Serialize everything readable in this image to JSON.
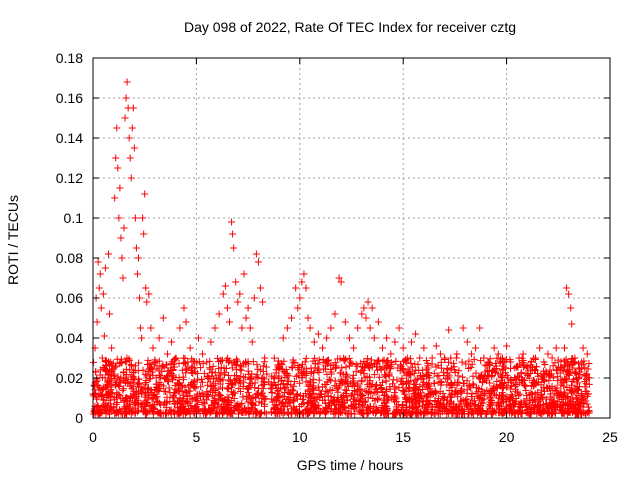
{
  "colors": {
    "marker": "#ff0000",
    "grid": "#a0a0a0",
    "frame": "#000000"
  },
  "chart_data": {
    "type": "scatter",
    "title": "Day 098 of 2022, Rate Of TEC Index for receiver cztg",
    "xlabel": "GPS time / hours",
    "ylabel": "ROTI / TECUs",
    "xlim": [
      0,
      25
    ],
    "ylim": [
      0,
      0.18
    ],
    "xticks": [
      0,
      5,
      10,
      15,
      20,
      25
    ],
    "xtick_labels": [
      "0",
      "5",
      "10",
      "15",
      "20",
      "25"
    ],
    "yticks": [
      0,
      0.02,
      0.04,
      0.06,
      0.08,
      0.1,
      0.12,
      0.14,
      0.16,
      0.18
    ],
    "ytick_labels": [
      "0",
      "0.02",
      "0.04",
      "0.06",
      "0.08",
      "0.1",
      "0.12",
      "0.14",
      "0.16",
      "0.18"
    ],
    "grid": true,
    "marker": "+",
    "series": [
      {
        "name": "ROTI",
        "points": [
          [
            0.0,
            0.012
          ],
          [
            0.1,
            0.035
          ],
          [
            0.15,
            0.06
          ],
          [
            0.2,
            0.048
          ],
          [
            0.25,
            0.078
          ],
          [
            0.3,
            0.065
          ],
          [
            0.35,
            0.072
          ],
          [
            0.4,
            0.055
          ],
          [
            0.45,
            0.03
          ],
          [
            0.5,
            0.062
          ],
          [
            0.55,
            0.041
          ],
          [
            0.6,
            0.075
          ],
          [
            0.65,
            0.028
          ],
          [
            0.7,
            0.018
          ],
          [
            0.75,
            0.082
          ],
          [
            0.8,
            0.052
          ],
          [
            0.9,
            0.035
          ],
          [
            1.0,
            0.022
          ],
          [
            1.05,
            0.11
          ],
          [
            1.1,
            0.13
          ],
          [
            1.15,
            0.145
          ],
          [
            1.2,
            0.125
          ],
          [
            1.25,
            0.1
          ],
          [
            1.3,
            0.115
          ],
          [
            1.35,
            0.09
          ],
          [
            1.4,
            0.08
          ],
          [
            1.45,
            0.07
          ],
          [
            1.5,
            0.095
          ],
          [
            1.55,
            0.15
          ],
          [
            1.6,
            0.16
          ],
          [
            1.65,
            0.168
          ],
          [
            1.7,
            0.155
          ],
          [
            1.75,
            0.14
          ],
          [
            1.8,
            0.13
          ],
          [
            1.85,
            0.12
          ],
          [
            1.9,
            0.145
          ],
          [
            1.95,
            0.155
          ],
          [
            2.0,
            0.135
          ],
          [
            2.05,
            0.1
          ],
          [
            2.1,
            0.085
          ],
          [
            2.15,
            0.072
          ],
          [
            2.2,
            0.08
          ],
          [
            2.25,
            0.06
          ],
          [
            2.3,
            0.045
          ],
          [
            2.35,
            0.04
          ],
          [
            2.4,
            0.1
          ],
          [
            2.45,
            0.092
          ],
          [
            2.5,
            0.112
          ],
          [
            2.55,
            0.065
          ],
          [
            2.6,
            0.058
          ],
          [
            2.7,
            0.062
          ],
          [
            2.8,
            0.045
          ],
          [
            2.9,
            0.035
          ],
          [
            3.0,
            0.028
          ],
          [
            3.2,
            0.04
          ],
          [
            3.4,
            0.05
          ],
          [
            3.6,
            0.032
          ],
          [
            3.8,
            0.038
          ],
          [
            4.0,
            0.03
          ],
          [
            4.2,
            0.045
          ],
          [
            4.4,
            0.055
          ],
          [
            4.5,
            0.048
          ],
          [
            4.7,
            0.035
          ],
          [
            4.9,
            0.025
          ],
          [
            5.1,
            0.04
          ],
          [
            5.3,
            0.032
          ],
          [
            5.5,
            0.028
          ],
          [
            5.7,
            0.038
          ],
          [
            5.9,
            0.045
          ],
          [
            6.1,
            0.052
          ],
          [
            6.3,
            0.062
          ],
          [
            6.4,
            0.066
          ],
          [
            6.5,
            0.055
          ],
          [
            6.6,
            0.048
          ],
          [
            6.7,
            0.098
          ],
          [
            6.75,
            0.092
          ],
          [
            6.8,
            0.085
          ],
          [
            6.9,
            0.068
          ],
          [
            7.0,
            0.058
          ],
          [
            7.1,
            0.062
          ],
          [
            7.2,
            0.045
          ],
          [
            7.3,
            0.072
          ],
          [
            7.4,
            0.05
          ],
          [
            7.5,
            0.055
          ],
          [
            7.6,
            0.045
          ],
          [
            7.7,
            0.038
          ],
          [
            7.8,
            0.06
          ],
          [
            7.9,
            0.082
          ],
          [
            8.0,
            0.078
          ],
          [
            8.1,
            0.065
          ],
          [
            8.2,
            0.058
          ],
          [
            8.3,
            0.03
          ],
          [
            8.4,
            0.022
          ],
          [
            8.5,
            0.018
          ],
          [
            9.0,
            0.025
          ],
          [
            9.2,
            0.04
          ],
          [
            9.4,
            0.045
          ],
          [
            9.6,
            0.05
          ],
          [
            9.8,
            0.065
          ],
          [
            9.9,
            0.055
          ],
          [
            10.0,
            0.06
          ],
          [
            10.1,
            0.068
          ],
          [
            10.2,
            0.072
          ],
          [
            10.3,
            0.065
          ],
          [
            10.4,
            0.05
          ],
          [
            10.5,
            0.045
          ],
          [
            10.7,
            0.038
          ],
          [
            10.9,
            0.042
          ],
          [
            11.1,
            0.035
          ],
          [
            11.3,
            0.04
          ],
          [
            11.5,
            0.045
          ],
          [
            11.7,
            0.052
          ],
          [
            11.9,
            0.07
          ],
          [
            12.0,
            0.068
          ],
          [
            12.2,
            0.048
          ],
          [
            12.4,
            0.04
          ],
          [
            12.6,
            0.035
          ],
          [
            12.8,
            0.045
          ],
          [
            13.0,
            0.052
          ],
          [
            13.1,
            0.055
          ],
          [
            13.2,
            0.05
          ],
          [
            13.3,
            0.058
          ],
          [
            13.4,
            0.045
          ],
          [
            13.5,
            0.055
          ],
          [
            13.6,
            0.04
          ],
          [
            13.8,
            0.048
          ],
          [
            14.0,
            0.035
          ],
          [
            14.2,
            0.04
          ],
          [
            14.4,
            0.032
          ],
          [
            14.6,
            0.038
          ],
          [
            14.8,
            0.045
          ],
          [
            15.0,
            0.035
          ],
          [
            15.2,
            0.03
          ],
          [
            15.4,
            0.038
          ],
          [
            15.6,
            0.042
          ],
          [
            15.8,
            0.03
          ],
          [
            16.0,
            0.035
          ],
          [
            16.2,
            0.025
          ],
          [
            16.4,
            0.03
          ],
          [
            16.6,
            0.036
          ],
          [
            16.8,
            0.032
          ],
          [
            17.0,
            0.03
          ],
          [
            17.2,
            0.044
          ],
          [
            17.3,
            0.03
          ],
          [
            17.6,
            0.032
          ],
          [
            17.9,
            0.045
          ],
          [
            18.1,
            0.038
          ],
          [
            18.3,
            0.032
          ],
          [
            18.5,
            0.035
          ],
          [
            18.7,
            0.045
          ],
          [
            18.9,
            0.03
          ],
          [
            19.1,
            0.028
          ],
          [
            19.4,
            0.035
          ],
          [
            19.6,
            0.032
          ],
          [
            19.8,
            0.03
          ],
          [
            20.0,
            0.036
          ],
          [
            20.2,
            0.028
          ],
          [
            20.4,
            0.025
          ],
          [
            20.6,
            0.03
          ],
          [
            20.8,
            0.032
          ],
          [
            21.0,
            0.025
          ],
          [
            21.2,
            0.028
          ],
          [
            21.4,
            0.03
          ],
          [
            21.6,
            0.035
          ],
          [
            21.8,
            0.028
          ],
          [
            22.0,
            0.032
          ],
          [
            22.2,
            0.03
          ],
          [
            22.4,
            0.035
          ],
          [
            22.6,
            0.025
          ],
          [
            22.8,
            0.035
          ],
          [
            22.9,
            0.065
          ],
          [
            23.0,
            0.062
          ],
          [
            23.1,
            0.055
          ],
          [
            23.15,
            0.047
          ],
          [
            23.3,
            0.03
          ],
          [
            23.5,
            0.025
          ],
          [
            23.7,
            0.035
          ],
          [
            23.9,
            0.032
          ],
          [
            24.0,
            0.02
          ]
        ],
        "background_band": {
          "description": "dense scatter of ROTI values from 0.0 to ~0.03 across the full day",
          "x_range": [
            0,
            24
          ],
          "y_range": [
            0.002,
            0.03
          ],
          "gap_x_range": [
            8.4,
            8.6
          ]
        }
      }
    ]
  }
}
